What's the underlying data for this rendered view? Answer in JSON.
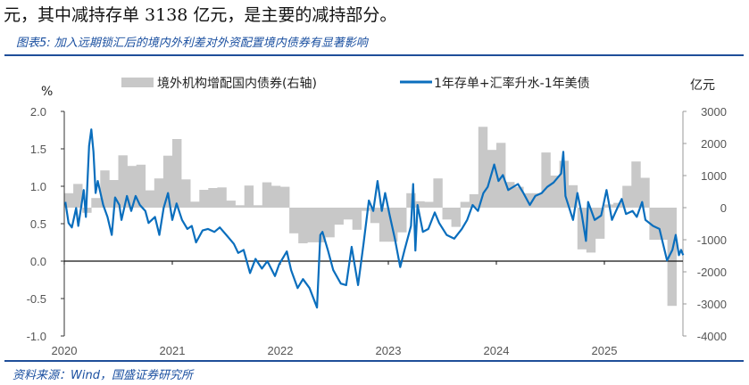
{
  "intro_text": "元，其中减持存单 3138 亿元，是主要的减持部分。",
  "caption": "图表5:  加入远期锁汇后的境内外利差对外资配置境内债券有显著影响",
  "source": "资料来源：Wind，国盛证券研究所",
  "colors": {
    "bar": "#c8c8c8",
    "line": "#0a6ebd",
    "rule": "#1f4e99"
  },
  "chart_data": {
    "type": "bar+line",
    "left_unit": "%",
    "right_unit": "亿元",
    "left_ticks": [
      "2.0",
      "1.5",
      "1.0",
      "0.5",
      "0.0",
      "-0.5",
      "-1.0"
    ],
    "left_tick_values": [
      2.0,
      1.5,
      1.0,
      0.5,
      0.0,
      -0.5,
      -1.0
    ],
    "right_ticks": [
      "3000",
      "2000",
      "1000",
      "0",
      "-1000",
      "-2000",
      "-3000",
      "-4000"
    ],
    "right_tick_values": [
      3000,
      2000,
      1000,
      0,
      -1000,
      -2000,
      -3000,
      -4000
    ],
    "ylim_left": [
      -1.0,
      2.0
    ],
    "ylim_right": [
      -4000,
      3000
    ],
    "x_ticks": [
      "2020",
      "2021",
      "2022",
      "2023",
      "2024",
      "2025"
    ],
    "x_tick_values": [
      2020,
      2021,
      2022,
      2023,
      2024,
      2025
    ],
    "xlim": [
      2020,
      2025.7
    ],
    "legend": [
      {
        "label": "境外机构增配国内债券(右轴)",
        "kind": "bar"
      },
      {
        "label": "1年存单+汇率升水-1年美债",
        "kind": "line"
      }
    ],
    "bars": {
      "name": "境外机构增配国内债券(右轴)",
      "start": "2020-01",
      "frequency": "monthly",
      "values": [
        450,
        740,
        -160,
        300,
        1160,
        860,
        1630,
        1300,
        1340,
        540,
        910,
        1620,
        2140,
        880,
        185,
        555,
        610,
        630,
        220,
        75,
        690,
        75,
        790,
        680,
        650,
        -800,
        -1110,
        -1080,
        -1080,
        -925,
        -530,
        -370,
        -690,
        -100,
        -480,
        -1060,
        -1060,
        -770,
        450,
        200,
        180,
        910,
        -370,
        -600,
        180,
        420,
        2520,
        1800,
        2020,
        800,
        650,
        450,
        450,
        1720,
        1000,
        1460,
        700,
        -1300,
        -1400,
        -970,
        100,
        150,
        680,
        1440,
        930,
        -1000,
        -1000,
        -3060
      ]
    },
    "line": {
      "name": "1年存单+汇率升水-1年美债",
      "points": [
        [
          2020.01,
          0.79
        ],
        [
          2020.04,
          0.51
        ],
        [
          2020.07,
          0.45
        ],
        [
          2020.11,
          0.71
        ],
        [
          2020.13,
          0.47
        ],
        [
          2020.18,
          0.95
        ],
        [
          2020.2,
          0.59
        ],
        [
          2020.23,
          1.54
        ],
        [
          2020.25,
          1.76
        ],
        [
          2020.27,
          1.46
        ],
        [
          2020.29,
          0.91
        ],
        [
          2020.31,
          1.07
        ],
        [
          2020.36,
          0.75
        ],
        [
          2020.4,
          0.59
        ],
        [
          2020.44,
          0.35
        ],
        [
          2020.47,
          0.85
        ],
        [
          2020.51,
          0.75
        ],
        [
          2020.53,
          0.55
        ],
        [
          2020.58,
          0.87
        ],
        [
          2020.62,
          0.67
        ],
        [
          2020.66,
          0.87
        ],
        [
          2020.7,
          0.75
        ],
        [
          2020.75,
          0.67
        ],
        [
          2020.78,
          0.51
        ],
        [
          2020.84,
          0.59
        ],
        [
          2020.88,
          0.35
        ],
        [
          2020.92,
          0.71
        ],
        [
          2020.96,
          0.91
        ],
        [
          2021.0,
          0.55
        ],
        [
          2021.04,
          0.77
        ],
        [
          2021.09,
          0.55
        ],
        [
          2021.14,
          0.43
        ],
        [
          2021.18,
          0.47
        ],
        [
          2021.22,
          0.25
        ],
        [
          2021.28,
          0.41
        ],
        [
          2021.33,
          0.43
        ],
        [
          2021.39,
          0.39
        ],
        [
          2021.44,
          0.45
        ],
        [
          2021.5,
          0.35
        ],
        [
          2021.57,
          0.23
        ],
        [
          2021.61,
          0.11
        ],
        [
          2021.66,
          0.15
        ],
        [
          2021.72,
          -0.16
        ],
        [
          2021.77,
          0.03
        ],
        [
          2021.83,
          -0.1
        ],
        [
          2021.88,
          0.0
        ],
        [
          2021.95,
          -0.2
        ],
        [
          2021.99,
          -0.04
        ],
        [
          2022.06,
          0.13
        ],
        [
          2022.1,
          -0.12
        ],
        [
          2022.16,
          -0.36
        ],
        [
          2022.21,
          -0.24
        ],
        [
          2022.27,
          -0.36
        ],
        [
          2022.34,
          -0.62
        ],
        [
          2022.37,
          0.35
        ],
        [
          2022.39,
          0.39
        ],
        [
          2022.44,
          0.15
        ],
        [
          2022.49,
          -0.12
        ],
        [
          2022.56,
          -0.3
        ],
        [
          2022.61,
          -0.32
        ],
        [
          2022.66,
          0.19
        ],
        [
          2022.72,
          -0.32
        ],
        [
          2022.77,
          0.23
        ],
        [
          2022.82,
          0.81
        ],
        [
          2022.86,
          0.67
        ],
        [
          2022.9,
          1.07
        ],
        [
          2022.94,
          0.67
        ],
        [
          2022.97,
          0.91
        ],
        [
          2023.01,
          0.63
        ],
        [
          2023.06,
          0.3
        ],
        [
          2023.11,
          -0.08
        ],
        [
          2023.15,
          0.15
        ],
        [
          2023.21,
          0.47
        ],
        [
          2023.23,
          1.03
        ],
        [
          2023.25,
          0.14
        ],
        [
          2023.27,
          0.75
        ],
        [
          2023.32,
          0.39
        ],
        [
          2023.37,
          0.43
        ],
        [
          2023.43,
          0.65
        ],
        [
          2023.47,
          0.51
        ],
        [
          2023.54,
          0.35
        ],
        [
          2023.61,
          0.3
        ],
        [
          2023.68,
          0.43
        ],
        [
          2023.73,
          0.55
        ],
        [
          2023.78,
          0.75
        ],
        [
          2023.83,
          0.67
        ],
        [
          2023.88,
          0.91
        ],
        [
          2023.92,
          0.99
        ],
        [
          2023.98,
          1.29
        ],
        [
          2024.02,
          1.07
        ],
        [
          2024.06,
          1.15
        ],
        [
          2024.11,
          0.95
        ],
        [
          2024.2,
          1.03
        ],
        [
          2024.25,
          0.91
        ],
        [
          2024.31,
          0.75
        ],
        [
          2024.36,
          0.87
        ],
        [
          2024.42,
          0.91
        ],
        [
          2024.47,
          0.99
        ],
        [
          2024.53,
          1.05
        ],
        [
          2024.6,
          1.17
        ],
        [
          2024.62,
          1.46
        ],
        [
          2024.64,
          0.87
        ],
        [
          2024.71,
          0.55
        ],
        [
          2024.75,
          0.91
        ],
        [
          2024.79,
          0.63
        ],
        [
          2024.83,
          0.27
        ],
        [
          2024.85,
          0.79
        ],
        [
          2024.91,
          0.55
        ],
        [
          2024.97,
          0.61
        ],
        [
          2025.02,
          0.95
        ],
        [
          2025.07,
          0.55
        ],
        [
          2025.12,
          0.71
        ],
        [
          2025.16,
          0.83
        ],
        [
          2025.2,
          0.63
        ],
        [
          2025.26,
          0.67
        ],
        [
          2025.3,
          0.59
        ],
        [
          2025.35,
          0.79
        ],
        [
          2025.38,
          0.55
        ],
        [
          2025.45,
          0.47
        ],
        [
          2025.51,
          0.43
        ],
        [
          2025.58,
          0.01
        ],
        [
          2025.63,
          0.15
        ],
        [
          2025.66,
          0.35
        ],
        [
          2025.69,
          0.08
        ],
        [
          2025.71,
          0.15
        ],
        [
          2025.73,
          0.08
        ]
      ]
    }
  }
}
